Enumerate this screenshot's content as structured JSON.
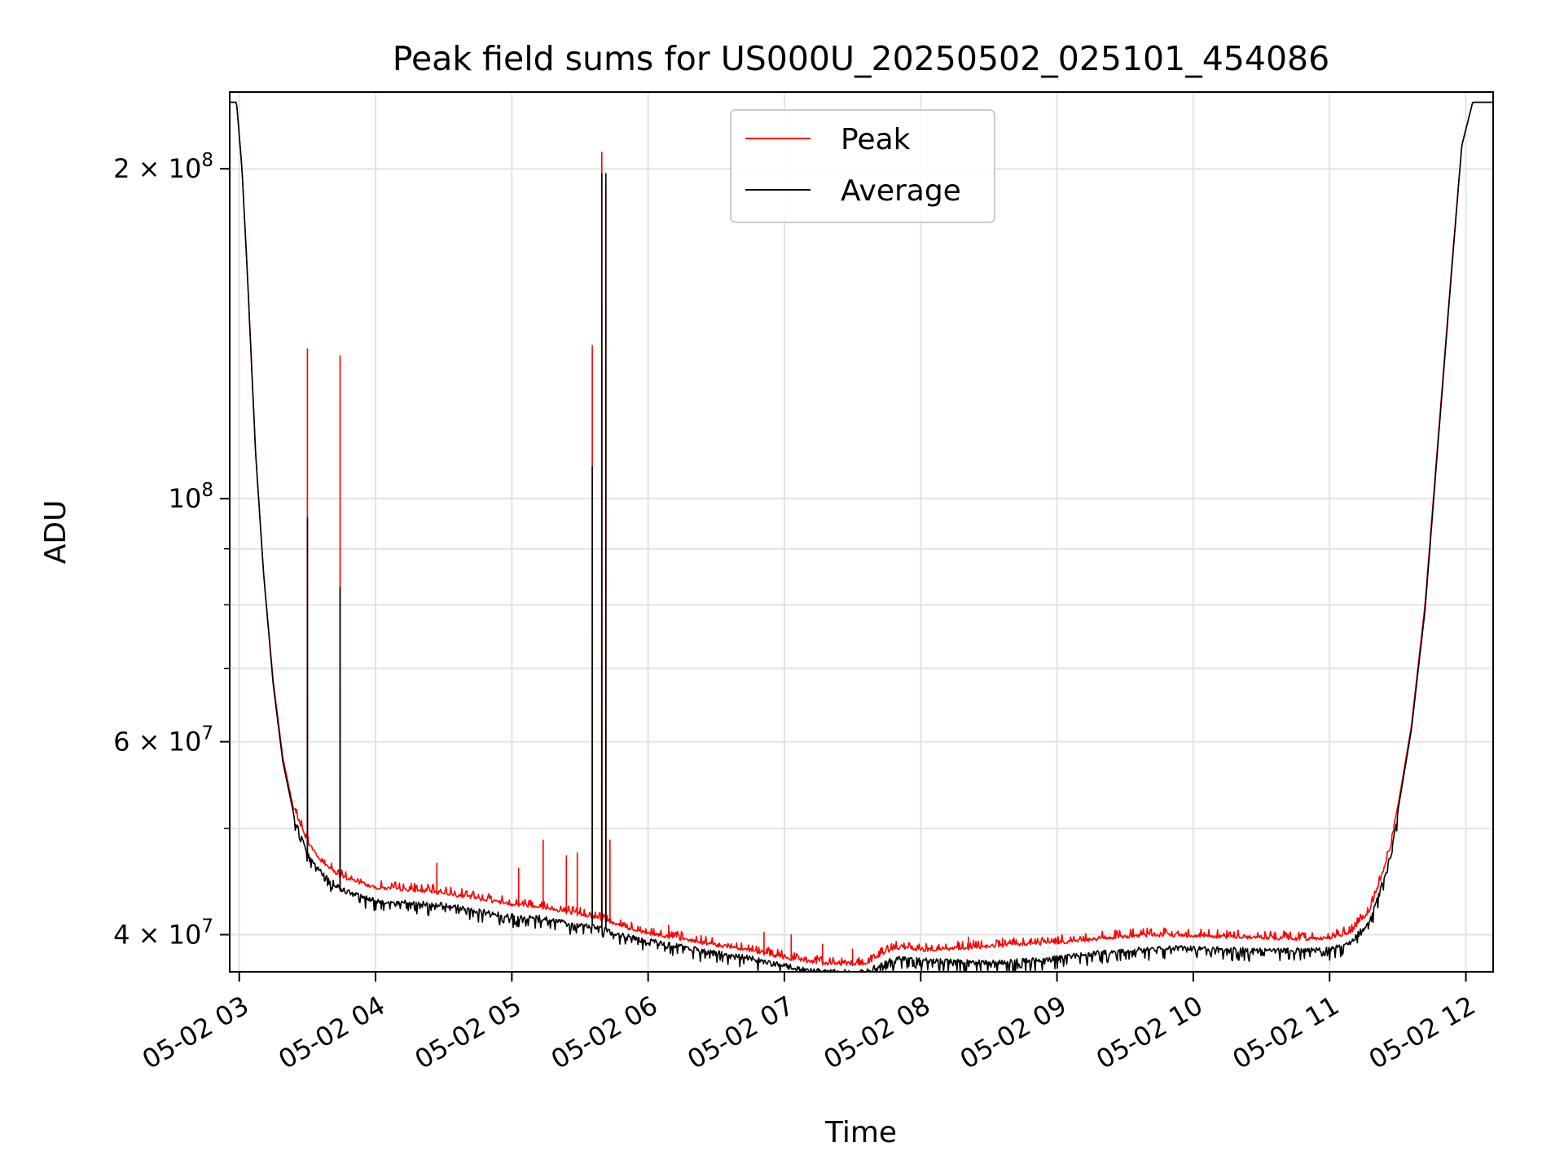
{
  "chart_data": {
    "type": "line",
    "title": "Peak field sums for US000U_20250502_025101_454086",
    "xlabel": "Time",
    "ylabel": "ADU",
    "x_unit": "hour of 2025-05-02",
    "xlim": [
      2.93,
      12.2
    ],
    "ylim": [
      37000000,
      235000000
    ],
    "yscale": "log",
    "grid": true,
    "legend_position": "upper center",
    "x_ticks": [
      {
        "value": 3,
        "label": "05-02 03"
      },
      {
        "value": 4,
        "label": "05-02 04"
      },
      {
        "value": 5,
        "label": "05-02 05"
      },
      {
        "value": 6,
        "label": "05-02 06"
      },
      {
        "value": 7,
        "label": "05-02 07"
      },
      {
        "value": 8,
        "label": "05-02 08"
      },
      {
        "value": 9,
        "label": "05-02 09"
      },
      {
        "value": 10,
        "label": "05-02 10"
      },
      {
        "value": 11,
        "label": "05-02 11"
      },
      {
        "value": 12,
        "label": "05-02 12"
      }
    ],
    "y_major_ticks": [
      {
        "value": 40000000,
        "mantissa": "4",
        "exponent": "7"
      },
      {
        "value": 60000000,
        "mantissa": "6",
        "exponent": "7"
      },
      {
        "value": 100000000,
        "mantissa": "",
        "exponent": "8"
      },
      {
        "value": 200000000,
        "mantissa": "2",
        "exponent": "8"
      }
    ],
    "y_minor_ticks": [
      50000000,
      70000000,
      80000000,
      90000000
    ],
    "series": [
      {
        "name": "Peak",
        "color": "#ff0000",
        "base": [
          [
            2.93,
            230000000
          ],
          [
            2.98,
            230000000
          ],
          [
            3.02,
            200000000
          ],
          [
            3.06,
            160000000
          ],
          [
            3.12,
            110000000
          ],
          [
            3.18,
            85000000
          ],
          [
            3.25,
            68000000
          ],
          [
            3.32,
            58000000
          ],
          [
            3.4,
            52000000
          ],
          [
            3.5,
            48500000
          ],
          [
            3.6,
            46500000
          ],
          [
            3.75,
            45000000
          ],
          [
            4.0,
            44000000
          ],
          [
            4.25,
            43800000
          ],
          [
            4.5,
            43500000
          ],
          [
            4.75,
            43000000
          ],
          [
            5.0,
            42500000
          ],
          [
            5.2,
            42300000
          ],
          [
            5.4,
            41800000
          ],
          [
            5.55,
            41500000
          ],
          [
            5.72,
            41000000
          ],
          [
            5.9,
            40200000
          ],
          [
            6.1,
            39800000
          ],
          [
            6.3,
            39400000
          ],
          [
            6.5,
            39000000
          ],
          [
            6.7,
            38700000
          ],
          [
            6.9,
            38200000
          ],
          [
            7.1,
            37800000
          ],
          [
            7.3,
            37500000
          ],
          [
            7.6,
            37500000
          ],
          [
            7.75,
            38500000
          ],
          [
            7.85,
            38800000
          ],
          [
            8.0,
            38600000
          ],
          [
            8.3,
            38700000
          ],
          [
            8.5,
            38900000
          ],
          [
            8.8,
            39100000
          ],
          [
            9.0,
            39200000
          ],
          [
            9.3,
            39500000
          ],
          [
            9.6,
            39800000
          ],
          [
            9.9,
            39800000
          ],
          [
            10.2,
            39700000
          ],
          [
            10.5,
            39600000
          ],
          [
            10.8,
            39500000
          ],
          [
            11.0,
            39600000
          ],
          [
            11.15,
            40000000
          ],
          [
            11.3,
            42000000
          ],
          [
            11.45,
            48000000
          ],
          [
            11.6,
            62000000
          ],
          [
            11.7,
            80000000
          ],
          [
            11.8,
            115000000
          ],
          [
            11.9,
            165000000
          ],
          [
            11.97,
            210000000
          ],
          [
            12.05,
            230000000
          ],
          [
            12.2,
            230000000
          ]
        ],
        "spikes": [
          [
            3.5,
            137000000
          ],
          [
            3.74,
            135000000
          ],
          [
            5.59,
            138000000
          ],
          [
            5.66,
            207000000
          ],
          [
            5.69,
            193000000
          ],
          [
            5.72,
            48800000
          ],
          [
            4.45,
            46500000
          ],
          [
            5.05,
            46000000
          ],
          [
            5.23,
            48800000
          ],
          [
            5.4,
            47200000
          ],
          [
            5.48,
            47500000
          ],
          [
            6.15,
            40800000
          ],
          [
            6.85,
            40200000
          ],
          [
            7.05,
            40000000
          ],
          [
            7.28,
            39200000
          ],
          [
            7.5,
            38800000
          ],
          [
            8.35,
            39800000
          ],
          [
            8.6,
            39700000
          ],
          [
            9.6,
            40000000
          ],
          [
            10.6,
            39900000
          ]
        ]
      },
      {
        "name": "Average",
        "color": "#000000",
        "base": [
          [
            2.93,
            230000000
          ],
          [
            2.98,
            230000000
          ],
          [
            3.02,
            200000000
          ],
          [
            3.06,
            160000000
          ],
          [
            3.12,
            110000000
          ],
          [
            3.18,
            85000000
          ],
          [
            3.25,
            67500000
          ],
          [
            3.32,
            57500000
          ],
          [
            3.4,
            51500000
          ],
          [
            3.5,
            47800000
          ],
          [
            3.6,
            45800000
          ],
          [
            3.75,
            44200000
          ],
          [
            4.0,
            43200000
          ],
          [
            4.25,
            43000000
          ],
          [
            4.5,
            42800000
          ],
          [
            4.75,
            42300000
          ],
          [
            5.0,
            41800000
          ],
          [
            5.2,
            41700000
          ],
          [
            5.4,
            41200000
          ],
          [
            5.55,
            41000000
          ],
          [
            5.72,
            40500000
          ],
          [
            5.9,
            39900000
          ],
          [
            6.1,
            39500000
          ],
          [
            6.3,
            39100000
          ],
          [
            6.5,
            38700000
          ],
          [
            6.7,
            38400000
          ],
          [
            6.9,
            37900000
          ],
          [
            7.1,
            37500000
          ],
          [
            7.3,
            37200000
          ],
          [
            7.6,
            37200000
          ],
          [
            7.75,
            38000000
          ],
          [
            7.85,
            38300000
          ],
          [
            8.0,
            38100000
          ],
          [
            8.3,
            38000000
          ],
          [
            8.5,
            37900000
          ],
          [
            8.8,
            38100000
          ],
          [
            9.0,
            38300000
          ],
          [
            9.3,
            38700000
          ],
          [
            9.6,
            39000000
          ],
          [
            9.9,
            39100000
          ],
          [
            10.2,
            39000000
          ],
          [
            10.5,
            38900000
          ],
          [
            10.8,
            38900000
          ],
          [
            11.0,
            39000000
          ],
          [
            11.15,
            39500000
          ],
          [
            11.3,
            41500000
          ],
          [
            11.45,
            47500000
          ],
          [
            11.6,
            61500000
          ],
          [
            11.7,
            79000000
          ],
          [
            11.8,
            114000000
          ],
          [
            11.9,
            164000000
          ],
          [
            11.97,
            210000000
          ],
          [
            12.05,
            230000000
          ],
          [
            12.2,
            230000000
          ]
        ],
        "spikes": [
          [
            3.5,
            96000000
          ],
          [
            3.74,
            83000000
          ],
          [
            5.59,
            107000000
          ],
          [
            5.66,
            198000000
          ],
          [
            5.69,
            198000000
          ]
        ]
      }
    ]
  }
}
